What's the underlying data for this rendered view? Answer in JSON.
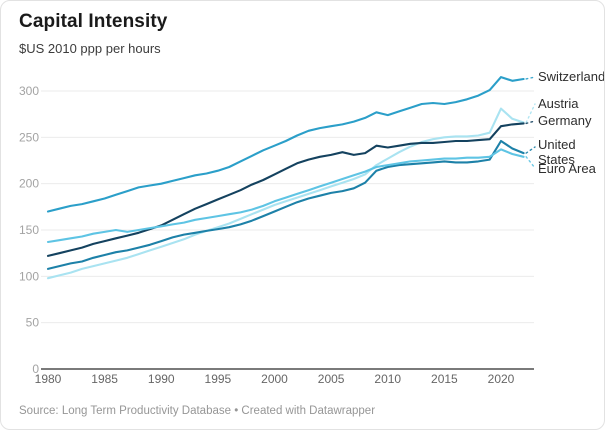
{
  "header": {
    "title": "Capital Intensity",
    "subtitle": "$US 2010 ppp per hours"
  },
  "footer": {
    "source_line": "Source: Long Term Productivity Database • Created with Datawrapper"
  },
  "chart_data": {
    "type": "line",
    "title": "Capital Intensity",
    "subtitle": "$US 2010 ppp per hours",
    "xlabel": "",
    "ylabel": "",
    "grid": true,
    "legend_position": "right-direct-labels",
    "xlim": [
      1980,
      2022
    ],
    "ylim": [
      0,
      330
    ],
    "x_ticks": [
      1980,
      1985,
      1990,
      1995,
      2000,
      2005,
      2010,
      2015,
      2020
    ],
    "y_ticks": [
      0,
      50,
      100,
      150,
      200,
      250,
      300
    ],
    "x": [
      1980,
      1981,
      1982,
      1983,
      1984,
      1985,
      1986,
      1987,
      1988,
      1989,
      1990,
      1991,
      1992,
      1993,
      1994,
      1995,
      1996,
      1997,
      1998,
      1999,
      2000,
      2001,
      2002,
      2003,
      2004,
      2005,
      2006,
      2007,
      2008,
      2009,
      2010,
      2011,
      2012,
      2013,
      2014,
      2015,
      2016,
      2017,
      2018,
      2019,
      2020,
      2021,
      2022
    ],
    "series": [
      {
        "name": "Switzerland",
        "color": "#2b9fc9",
        "values": [
          170,
          173,
          176,
          178,
          181,
          184,
          188,
          192,
          196,
          198,
          200,
          203,
          206,
          209,
          211,
          214,
          218,
          224,
          230,
          236,
          241,
          246,
          252,
          257,
          260,
          262,
          264,
          267,
          271,
          277,
          274,
          278,
          282,
          286,
          287,
          286,
          288,
          291,
          295,
          301,
          315,
          311,
          313
        ]
      },
      {
        "name": "Austria",
        "color": "#a9e3f1",
        "values": [
          98,
          101,
          104,
          108,
          111,
          114,
          117,
          120,
          124,
          128,
          132,
          136,
          140,
          145,
          149,
          153,
          157,
          162,
          167,
          172,
          177,
          181,
          185,
          189,
          193,
          197,
          201,
          205,
          210,
          220,
          227,
          234,
          240,
          245,
          248,
          250,
          251,
          251,
          252,
          255,
          281,
          270,
          266
        ]
      },
      {
        "name": "Germany",
        "color": "#14425f",
        "values": [
          122,
          125,
          128,
          131,
          135,
          138,
          141,
          144,
          147,
          151,
          155,
          161,
          167,
          173,
          178,
          183,
          188,
          193,
          199,
          204,
          210,
          216,
          222,
          226,
          229,
          231,
          234,
          231,
          233,
          241,
          239,
          241,
          243,
          244,
          244,
          245,
          246,
          246,
          247,
          248,
          262,
          264,
          265
        ]
      },
      {
        "name": "United States",
        "color": "#1d81a8",
        "values": [
          108,
          111,
          114,
          116,
          120,
          123,
          126,
          128,
          131,
          134,
          138,
          142,
          145,
          147,
          149,
          151,
          153,
          156,
          160,
          165,
          170,
          175,
          180,
          184,
          187,
          190,
          192,
          195,
          201,
          214,
          218,
          220,
          221,
          222,
          223,
          224,
          223,
          223,
          224,
          226,
          246,
          238,
          233
        ]
      },
      {
        "name": "Euro Area",
        "color": "#5ec4e4",
        "values": [
          137,
          139,
          141,
          143,
          146,
          148,
          150,
          148,
          150,
          152,
          154,
          156,
          158,
          161,
          163,
          165,
          167,
          169,
          172,
          176,
          181,
          185,
          189,
          193,
          197,
          201,
          205,
          209,
          213,
          218,
          220,
          222,
          224,
          225,
          226,
          227,
          227,
          228,
          228,
          229,
          237,
          232,
          229
        ]
      }
    ],
    "axis_colors": {
      "gridline": "#ebebeb",
      "baseline": "#4f4f4f",
      "y_tick_label": "#a3a3a3",
      "x_tick_label": "#666666"
    }
  }
}
